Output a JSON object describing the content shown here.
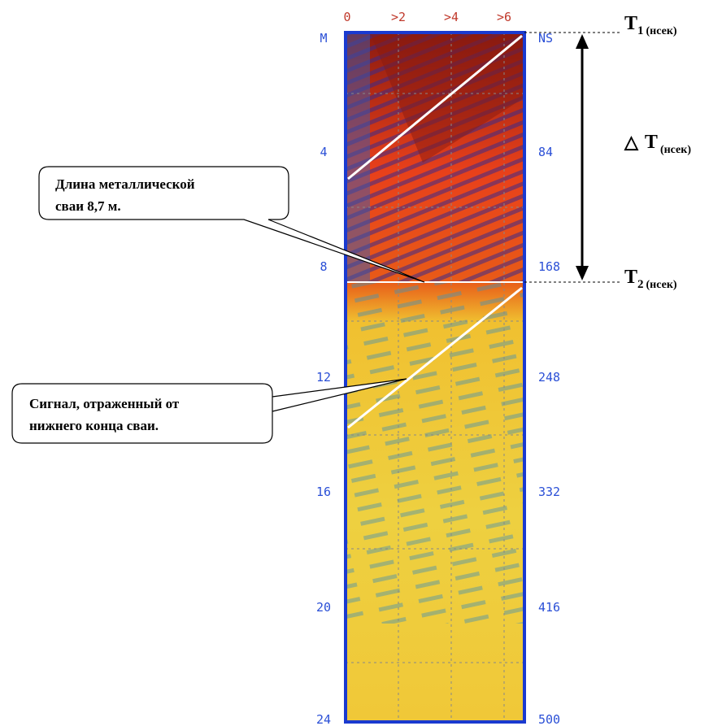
{
  "top_axis": {
    "labels": [
      "0",
      ">2",
      ">4",
      ">6"
    ]
  },
  "left_axis": {
    "labels": [
      "M",
      "4",
      "8",
      "12",
      "16",
      "20",
      "24"
    ]
  },
  "right_axis": {
    "labels": [
      "NS",
      "84",
      "168",
      "248",
      "332",
      "416",
      "500"
    ]
  },
  "markers": {
    "t1": {
      "symbol": "T",
      "index": "1",
      "unit": "(нсек)"
    },
    "delta": {
      "symbol": "△",
      "letter": "T",
      "unit": "(нсек)"
    },
    "t2": {
      "symbol": "T",
      "index": "2",
      "unit": "(нсек)"
    }
  },
  "callouts": [
    {
      "lines": [
        "Длина металлической",
        "сваи  8,7 м."
      ]
    },
    {
      "lines": [
        "Сигнал, отраженный от",
        "нижнего конца сваи."
      ]
    }
  ]
}
